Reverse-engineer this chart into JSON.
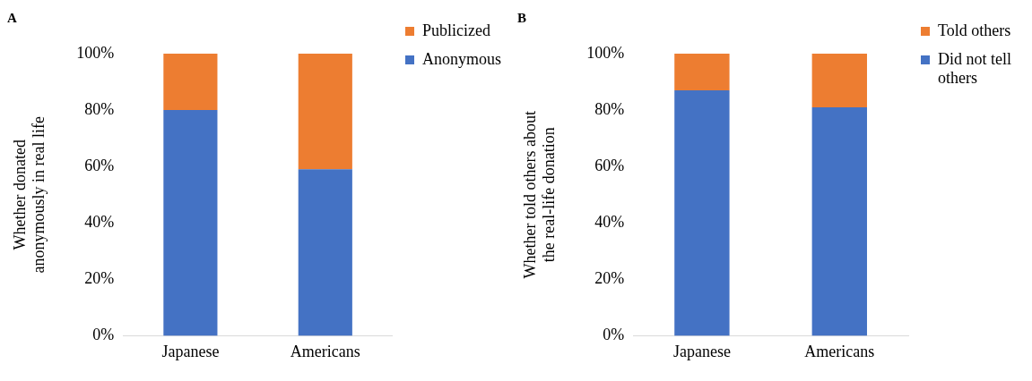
{
  "chart_data": [
    {
      "type": "bar",
      "title": "A",
      "ylabel": "Whether donated anonymously in real life",
      "categories": [
        "Japanese",
        "Americans"
      ],
      "stacked": true,
      "series": [
        {
          "name": "Anonymous",
          "color": "#4472c4",
          "values": [
            80,
            59
          ]
        },
        {
          "name": "Publicized",
          "color": "#ed7d31",
          "values": [
            20,
            41
          ]
        }
      ],
      "ylim": [
        0,
        100
      ],
      "yticks": [
        {
          "value": 0,
          "label": "0%"
        },
        {
          "value": 20,
          "label": "20%"
        },
        {
          "value": 40,
          "label": "40%"
        },
        {
          "value": 60,
          "label": "60%"
        },
        {
          "value": 80,
          "label": "80%"
        },
        {
          "value": 100,
          "label": "100%"
        }
      ],
      "grid": false,
      "legend": "right"
    },
    {
      "type": "bar",
      "title": "B",
      "ylabel": "Whether told others about the real-life donation",
      "categories": [
        "Japanese",
        "Americans"
      ],
      "stacked": true,
      "series": [
        {
          "name": "Did not tell others",
          "color": "#4472c4",
          "values": [
            87,
            81
          ]
        },
        {
          "name": "Told others",
          "color": "#ed7d31",
          "values": [
            13,
            19
          ]
        }
      ],
      "ylim": [
        0,
        100
      ],
      "yticks": [
        {
          "value": 0,
          "label": "0%"
        },
        {
          "value": 20,
          "label": "20%"
        },
        {
          "value": 40,
          "label": "40%"
        },
        {
          "value": 60,
          "label": "60%"
        },
        {
          "value": 80,
          "label": "80%"
        },
        {
          "value": 100,
          "label": "100%"
        }
      ],
      "grid": false,
      "legend": "right"
    }
  ]
}
